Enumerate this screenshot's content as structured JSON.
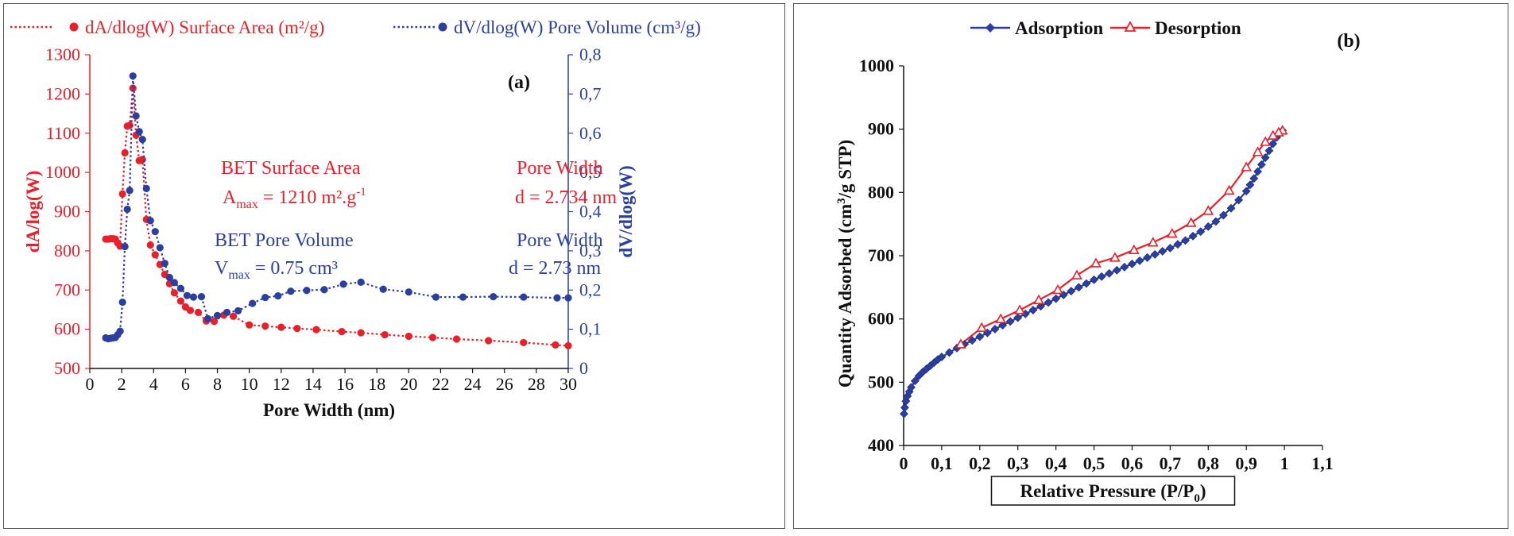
{
  "chart_data": [
    {
      "type": "line",
      "panel_label": "(a)",
      "legend": [
        {
          "name": "dA/dlog(W) Surface Area (m²/g)",
          "color": "#e8202a"
        },
        {
          "name": "dV/dlog(W) Pore Volume (cm³/g)",
          "color": "#2b3f9e"
        }
      ],
      "xlabel": "Pore Width (nm)",
      "ylabel_left": "dA/log(W)",
      "ylabel_right": "dV/dlog(W)",
      "xlim": [
        0,
        30
      ],
      "ylim_left": [
        500,
        1300
      ],
      "ylim_right": [
        0,
        0.8
      ],
      "x_ticks": [
        "0",
        "2",
        "4",
        "6",
        "8",
        "10",
        "12",
        "14",
        "16",
        "18",
        "20",
        "22",
        "24",
        "26",
        "28",
        "30"
      ],
      "y_ticks_left": [
        "500",
        "600",
        "700",
        "800",
        "900",
        "1000",
        "1100",
        "1200",
        "1300"
      ],
      "y_ticks_right": [
        "0",
        "0,1",
        "0,2",
        "0,3",
        "0,4",
        "0,5",
        "0,6",
        "0,7",
        "0,8"
      ],
      "grid": false,
      "legend_position": "top",
      "annotations": {
        "bet_area_title": "BET Surface Area",
        "bet_area_prefix": "A",
        "bet_area_sub": "max",
        "bet_area_value": " = 1210 m².g",
        "bet_area_sup": "-1",
        "pore_width_red_title": "Pore Width",
        "pore_width_red_value": "d = 2.734 nm",
        "bet_volume_title": "BET Pore Volume",
        "bet_volume_prefix": "V",
        "bet_volume_sub": "max",
        "bet_volume_value": " = 0.75 cm³",
        "pore_width_blue_title": "Pore Width",
        "pore_width_blue_value": "d  = 2.73 nm"
      },
      "series": [
        {
          "name": "dA/dlog(W) Surface Area (m²/g)",
          "axis": "left",
          "color": "#e8202a",
          "x": [
            1.0,
            1.15,
            1.3,
            1.45,
            1.6,
            1.75,
            1.9,
            2.05,
            2.2,
            2.35,
            2.5,
            2.7,
            2.9,
            3.1,
            3.3,
            3.55,
            3.8,
            4.1,
            4.4,
            4.7,
            5.0,
            5.3,
            5.7,
            6.0,
            6.3,
            6.8,
            7.3,
            7.8,
            8.4,
            9.0,
            10.0,
            11.0,
            12.0,
            13.0,
            14.2,
            15.8,
            17.0,
            18.5,
            20.0,
            21.5,
            23.0,
            25.0,
            27.2,
            29.2,
            30.0
          ],
          "y": [
            830,
            830,
            831,
            831,
            830,
            820,
            812,
            945,
            1050,
            1118,
            1120,
            1215,
            1095,
            1030,
            1033,
            880,
            815,
            790,
            765,
            740,
            716,
            693,
            672,
            657,
            648,
            643,
            621,
            620,
            636,
            633,
            611,
            608,
            605,
            602,
            599,
            594,
            591,
            586,
            582,
            579,
            575,
            571,
            566,
            560,
            558
          ]
        },
        {
          "name": "dV/dlog(W) Pore Volume (cm³/g)",
          "axis": "right",
          "color": "#2b3f9e",
          "x": [
            1.0,
            1.15,
            1.3,
            1.45,
            1.6,
            1.75,
            1.9,
            2.05,
            2.2,
            2.35,
            2.5,
            2.7,
            2.9,
            3.1,
            3.3,
            3.55,
            3.8,
            4.1,
            4.4,
            4.7,
            5.0,
            5.3,
            5.7,
            6.1,
            6.5,
            7.0,
            7.4,
            8.0,
            8.6,
            9.3,
            10.2,
            11.0,
            11.8,
            12.6,
            13.6,
            14.7,
            15.9,
            17.0,
            18.4,
            20.0,
            21.7,
            23.4,
            25.3,
            27.2,
            29.3,
            30.0
          ],
          "y": [
            0.078,
            0.076,
            0.077,
            0.078,
            0.079,
            0.086,
            0.095,
            0.169,
            0.311,
            0.406,
            0.454,
            0.746,
            0.644,
            0.604,
            0.584,
            0.459,
            0.377,
            0.349,
            0.308,
            0.268,
            0.232,
            0.219,
            0.204,
            0.186,
            0.182,
            0.183,
            0.127,
            0.135,
            0.143,
            0.147,
            0.166,
            0.181,
            0.185,
            0.197,
            0.199,
            0.201,
            0.215,
            0.22,
            0.202,
            0.195,
            0.182,
            0.182,
            0.183,
            0.182,
            0.18,
            0.18
          ]
        }
      ]
    },
    {
      "type": "line",
      "panel_label": "(b)",
      "legend": [
        {
          "name": "Adsorption",
          "color": "#2b3f9e"
        },
        {
          "name": "Desorption",
          "color": "#e8202a"
        }
      ],
      "xlabel_main": "Relative Pressure (P/P",
      "xlabel_sub": "0",
      "xlabel_end": ")",
      "ylabel_main": "Quantity Adsorbed (cm",
      "ylabel_sup": "3",
      "ylabel_end": "/g STP)",
      "xlim": [
        0,
        1.1
      ],
      "ylim": [
        400,
        1000
      ],
      "x_ticks": [
        "0",
        "0,1",
        "0,2",
        "0,3",
        "0,4",
        "0,5",
        "0,6",
        "0,7",
        "0,8",
        "0,9",
        "1",
        "1,1"
      ],
      "y_ticks": [
        "400",
        "500",
        "600",
        "700",
        "800",
        "900",
        "1000"
      ],
      "grid": false,
      "legend_position": "top",
      "series": [
        {
          "name": "Adsorption",
          "color": "#2b3f9e",
          "marker": "diamond",
          "x": [
            0.001,
            0.003,
            0.006,
            0.01,
            0.015,
            0.02,
            0.03,
            0.04,
            0.05,
            0.06,
            0.07,
            0.08,
            0.09,
            0.1,
            0.12,
            0.14,
            0.16,
            0.18,
            0.2,
            0.22,
            0.24,
            0.26,
            0.28,
            0.3,
            0.32,
            0.34,
            0.36,
            0.38,
            0.4,
            0.42,
            0.44,
            0.46,
            0.48,
            0.5,
            0.52,
            0.54,
            0.56,
            0.58,
            0.6,
            0.62,
            0.64,
            0.66,
            0.68,
            0.7,
            0.72,
            0.74,
            0.76,
            0.78,
            0.8,
            0.82,
            0.84,
            0.86,
            0.88,
            0.9,
            0.91,
            0.92,
            0.93,
            0.94,
            0.95,
            0.96,
            0.97,
            0.98,
            0.99,
            0.995
          ],
          "y": [
            450,
            460,
            470,
            478,
            485,
            492,
            502,
            510,
            516,
            521,
            526,
            531,
            536,
            540,
            547,
            554,
            560,
            566,
            572,
            578,
            584,
            590,
            596,
            602,
            608,
            614,
            620,
            626,
            632,
            638,
            644,
            650,
            656,
            662,
            667,
            672,
            677,
            682,
            687,
            692,
            697,
            702,
            707,
            712,
            718,
            724,
            731,
            738,
            746,
            754,
            764,
            775,
            788,
            802,
            812,
            822,
            833,
            844,
            855,
            866,
            877,
            887,
            895,
            898
          ]
        },
        {
          "name": "Desorption",
          "color": "#e8202a",
          "marker": "triangle",
          "x": [
            0.995,
            0.985,
            0.97,
            0.95,
            0.93,
            0.9,
            0.855,
            0.8,
            0.755,
            0.705,
            0.655,
            0.605,
            0.555,
            0.505,
            0.455,
            0.405,
            0.355,
            0.305,
            0.255,
            0.205,
            0.15
          ],
          "y": [
            898,
            895,
            890,
            880,
            864,
            840,
            803,
            771,
            752,
            735,
            721,
            709,
            697,
            688,
            669,
            646,
            630,
            614,
            600,
            586,
            560
          ]
        }
      ]
    }
  ]
}
